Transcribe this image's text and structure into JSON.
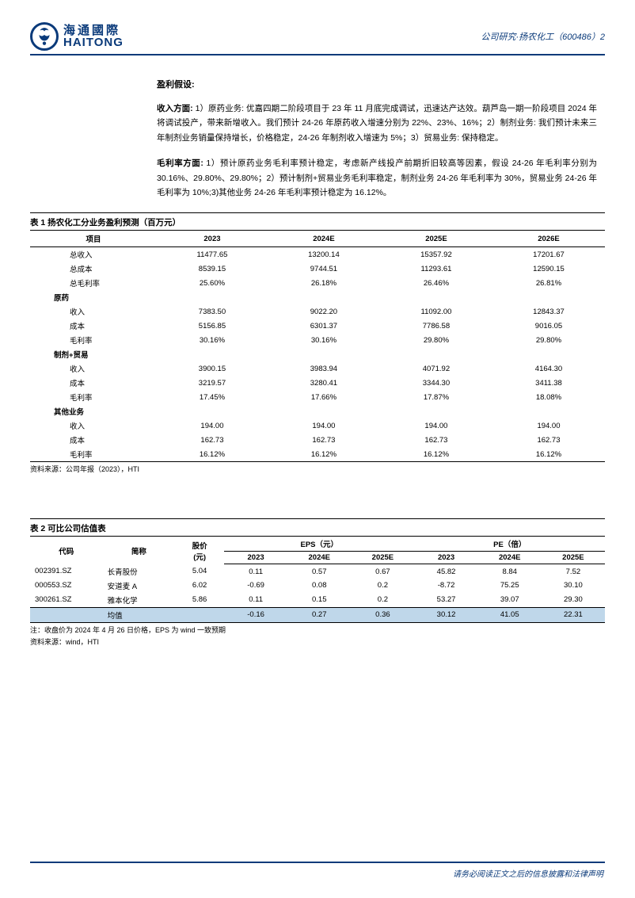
{
  "header": {
    "logo_cn": "海通國際",
    "logo_en": "HAITONG",
    "right": "公司研究·扬农化工（600486）2"
  },
  "body": {
    "assump_title": "盈利假设:",
    "para1": "收入方面: 1）原药业务: 优嘉四期二阶段项目于 23 年 11 月底完成调试，迅速达产达效。葫芦岛一期一阶段项目 2024 年将调试投产，带来新增收入。我们预计 24-26 年原药收入增速分别为 22%、23%、16%；2）制剂业务: 我们预计未来三年制剂业务销量保持增长，价格稳定，24-26 年制剂收入增速为 5%；3）贸易业务: 保持稳定。",
    "para2": "毛利率方面: 1）预计原药业务毛利率预计稳定，考虑新产线投产前期折旧较高等因素，假设 24-26 年毛利率分别为 30.16%、29.80%、29.80%；2）预计制剂+贸易业务毛利率稳定，制剂业务 24-26 年毛利率为 30%，贸易业务 24-26 年毛利率为 10%;3)其他业务 24-26 年毛利率预计稳定为 16.12%。"
  },
  "table1": {
    "caption": "表 1 扬农化工分业务盈利预测（百万元）",
    "cols": [
      "项目",
      "2023",
      "2024E",
      "2025E",
      "2026E"
    ],
    "rows": [
      {
        "t": "d",
        "c": [
          "总收入",
          "11477.65",
          "13200.14",
          "15357.92",
          "17201.67"
        ]
      },
      {
        "t": "d",
        "c": [
          "总成本",
          "8539.15",
          "9744.51",
          "11293.61",
          "12590.15"
        ]
      },
      {
        "t": "d",
        "c": [
          "总毛利率",
          "25.60%",
          "26.18%",
          "26.46%",
          "26.81%"
        ]
      },
      {
        "t": "g",
        "c": [
          "原药",
          "",
          "",
          "",
          ""
        ]
      },
      {
        "t": "d",
        "c": [
          "收入",
          "7383.50",
          "9022.20",
          "11092.00",
          "12843.37"
        ]
      },
      {
        "t": "d",
        "c": [
          "成本",
          "5156.85",
          "6301.37",
          "7786.58",
          "9016.05"
        ]
      },
      {
        "t": "d",
        "c": [
          "毛利率",
          "30.16%",
          "30.16%",
          "29.80%",
          "29.80%"
        ]
      },
      {
        "t": "g",
        "c": [
          "制剂+贸易",
          "",
          "",
          "",
          ""
        ]
      },
      {
        "t": "d",
        "c": [
          "收入",
          "3900.15",
          "3983.94",
          "4071.92",
          "4164.30"
        ]
      },
      {
        "t": "d",
        "c": [
          "成本",
          "3219.57",
          "3280.41",
          "3344.30",
          "3411.38"
        ]
      },
      {
        "t": "d",
        "c": [
          "毛利率",
          "17.45%",
          "17.66%",
          "17.87%",
          "18.08%"
        ]
      },
      {
        "t": "g",
        "c": [
          "其他业务",
          "",
          "",
          "",
          ""
        ]
      },
      {
        "t": "d",
        "c": [
          "收入",
          "194.00",
          "194.00",
          "194.00",
          "194.00"
        ]
      },
      {
        "t": "d",
        "c": [
          "成本",
          "162.73",
          "162.73",
          "162.73",
          "162.73"
        ]
      },
      {
        "t": "d",
        "c": [
          "毛利率",
          "16.12%",
          "16.12%",
          "16.12%",
          "16.12%"
        ],
        "last": true
      }
    ],
    "source": "资料来源：公司年报（2023），HTI"
  },
  "table2": {
    "caption": "表 2 可比公司估值表",
    "h_code": "代码",
    "h_name": "简称",
    "h_price": "股价\n(元)",
    "h_eps": "EPS（元）",
    "h_pe": "PE（倍）",
    "sub": [
      "2023",
      "2024E",
      "2025E",
      "2023",
      "2024E",
      "2025E"
    ],
    "rows": [
      [
        "002391.SZ",
        "长青股份",
        "5.04",
        "0.11",
        "0.57",
        "0.67",
        "45.82",
        "8.84",
        "7.52"
      ],
      [
        "000553.SZ",
        "安道麦 A",
        "6.02",
        "-0.69",
        "0.08",
        "0.2",
        "-8.72",
        "75.25",
        "30.10"
      ],
      [
        "300261.SZ",
        "雅本化学",
        "5.86",
        "0.11",
        "0.15",
        "0.2",
        "53.27",
        "39.07",
        "29.30"
      ]
    ],
    "avg": [
      "",
      "均值",
      "",
      "-0.16",
      "0.27",
      "0.36",
      "30.12",
      "41.05",
      "22.31"
    ],
    "note": "注：收盘价为 2024 年 4 月 26 日价格，EPS 为 wind 一致预期",
    "source": "资料来源：wind，HTI"
  },
  "footer": "请务必阅读正文之后的信息披露和法律声明"
}
